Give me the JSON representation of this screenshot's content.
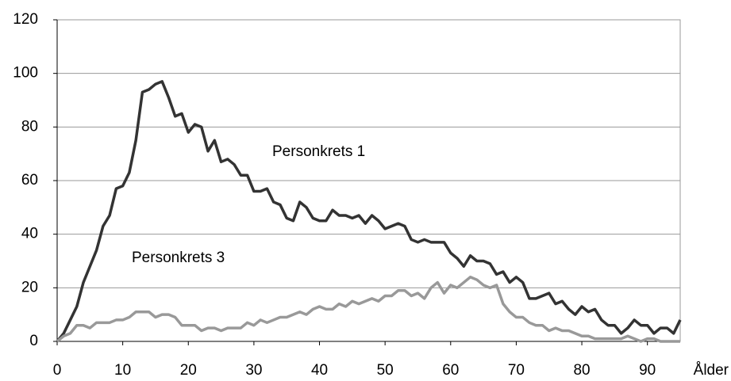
{
  "chart_data": {
    "type": "line",
    "x_label": "Ålder",
    "x": [
      0,
      1,
      2,
      3,
      4,
      5,
      6,
      7,
      8,
      9,
      10,
      11,
      12,
      13,
      14,
      15,
      16,
      17,
      18,
      19,
      20,
      21,
      22,
      23,
      24,
      25,
      26,
      27,
      28,
      29,
      30,
      31,
      32,
      33,
      34,
      35,
      36,
      37,
      38,
      39,
      40,
      41,
      42,
      43,
      44,
      45,
      46,
      47,
      48,
      49,
      50,
      51,
      52,
      53,
      54,
      55,
      56,
      57,
      58,
      59,
      60,
      61,
      62,
      63,
      64,
      65,
      66,
      67,
      68,
      69,
      70,
      71,
      72,
      73,
      74,
      75,
      76,
      77,
      78,
      79,
      80,
      81,
      82,
      83,
      84,
      85,
      86,
      87,
      88,
      89,
      90,
      91,
      92,
      93,
      94,
      95
    ],
    "series": [
      {
        "name": "Personkrets 1",
        "color": "#333333",
        "values": [
          0,
          3,
          8,
          13,
          22,
          28,
          34,
          43,
          47,
          57,
          58,
          63,
          75,
          93,
          94,
          96,
          97,
          91,
          84,
          85,
          78,
          81,
          80,
          71,
          75,
          67,
          68,
          66,
          62,
          62,
          56,
          56,
          57,
          52,
          51,
          46,
          45,
          52,
          50,
          46,
          45,
          45,
          49,
          47,
          47,
          46,
          47,
          44,
          47,
          45,
          42,
          43,
          44,
          43,
          38,
          37,
          38,
          37,
          37,
          37,
          33,
          31,
          28,
          32,
          30,
          30,
          29,
          25,
          26,
          22,
          24,
          22,
          16,
          16,
          17,
          18,
          14,
          15,
          12,
          10,
          13,
          11,
          12,
          8,
          6,
          6,
          3,
          5,
          8,
          6,
          6,
          3,
          5,
          5,
          3,
          8
        ]
      },
      {
        "name": "Personkrets 3",
        "color": "#999999",
        "values": [
          0,
          2,
          3,
          6,
          6,
          5,
          7,
          7,
          7,
          8,
          8,
          9,
          11,
          11,
          11,
          9,
          10,
          10,
          9,
          6,
          6,
          6,
          4,
          5,
          5,
          4,
          5,
          5,
          5,
          7,
          6,
          8,
          7,
          8,
          9,
          9,
          10,
          11,
          10,
          12,
          13,
          12,
          12,
          14,
          13,
          15,
          14,
          15,
          16,
          15,
          17,
          17,
          19,
          19,
          17,
          18,
          16,
          20,
          22,
          18,
          21,
          20,
          22,
          24,
          23,
          21,
          20,
          21,
          14,
          11,
          9,
          9,
          7,
          6,
          6,
          4,
          5,
          4,
          4,
          3,
          2,
          2,
          1,
          1,
          1,
          1,
          1,
          2,
          1,
          0,
          1,
          1,
          0,
          0,
          0,
          0
        ]
      }
    ],
    "xlim": [
      0,
      95
    ],
    "xticks": [
      0,
      10,
      20,
      30,
      40,
      50,
      60,
      70,
      80,
      90
    ],
    "ylim": [
      0,
      120
    ],
    "yticks": [
      0,
      20,
      40,
      60,
      80,
      100,
      120
    ],
    "grid": true
  }
}
